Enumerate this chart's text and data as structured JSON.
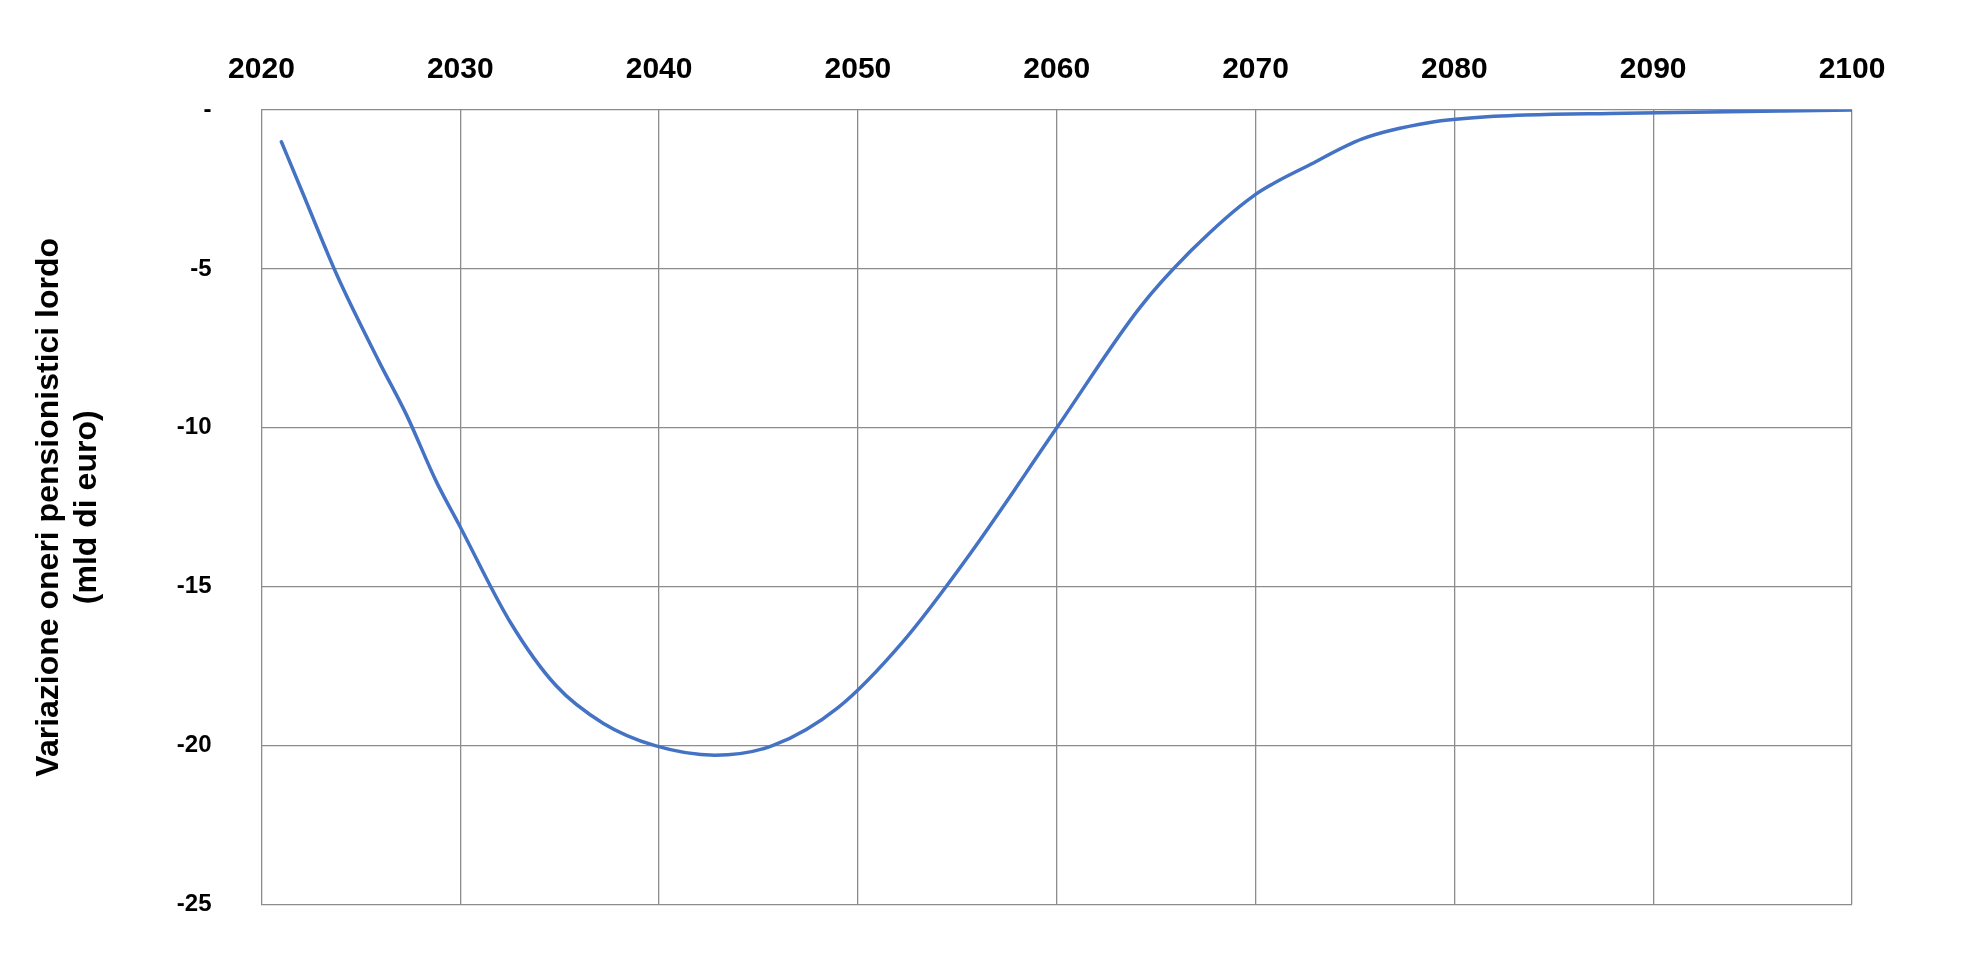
{
  "chart_data": {
    "type": "line",
    "ylabel": "Variazione oneri pensionistici lordo\n(mld di euro)",
    "series": [
      {
        "color": "#4472c4",
        "x": [
          2021,
          2022,
          2023.8,
          2025.9,
          2027.3,
          2028.8,
          2029.9,
          2032.5,
          2034.8,
          2037.2,
          2039.8,
          2042.8,
          2045.7,
          2049,
          2052.3,
          2055.6,
          2060,
          2064.2,
          2066.8,
          2069.9,
          2072.8,
          2075.4,
          2078.7,
          2082,
          2088.6,
          2100
        ],
        "values": [
          -1.0,
          -2.5,
          -5.2,
          -7.9,
          -9.6,
          -11.7,
          -13.0,
          -16.1,
          -18.1,
          -19.3,
          -20.0,
          -20.3,
          -20.0,
          -18.8,
          -16.7,
          -14.0,
          -10.0,
          -6.2,
          -4.4,
          -2.7,
          -1.7,
          -0.9,
          -0.4,
          -0.2,
          -0.1,
          0
        ]
      }
    ],
    "xlim": [
      2020,
      2100
    ],
    "xticks": [
      2020,
      2030,
      2040,
      2050,
      2060,
      2070,
      2080,
      2090,
      2100
    ],
    "ylim": [
      -25,
      0
    ],
    "yticks": [
      {
        "value": 0,
        "label": "-"
      },
      -5,
      -10,
      -15,
      -20,
      -25
    ],
    "grid": true,
    "legend": false,
    "marker": "none",
    "line_style": "solid"
  }
}
